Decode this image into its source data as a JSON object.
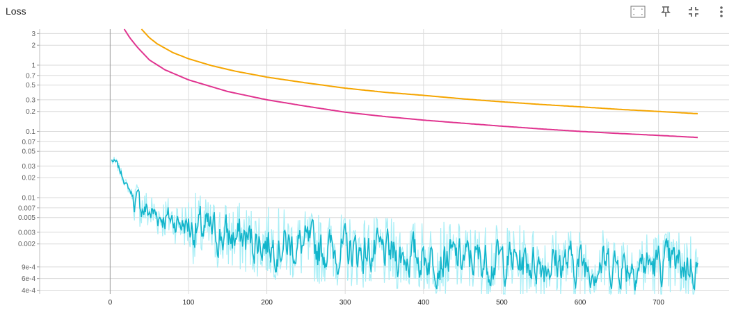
{
  "card": {
    "title": "Loss"
  },
  "toolbar": {
    "icons": [
      "fit-domain-icon",
      "pin-icon",
      "fullscreen-exit-icon",
      "more-vert-icon"
    ]
  },
  "chart_data": {
    "type": "line",
    "title": "Loss",
    "xlabel": "",
    "ylabel": "",
    "y_scale": "log",
    "grid": true,
    "xlim": [
      -90,
      790
    ],
    "ylim": [
      0.00035,
      3.5
    ],
    "x_ticks": [
      {
        "value": 0,
        "label": "0"
      },
      {
        "value": 100,
        "label": "100"
      },
      {
        "value": 200,
        "label": "200"
      },
      {
        "value": 300,
        "label": "300"
      },
      {
        "value": 400,
        "label": "400"
      },
      {
        "value": 500,
        "label": "500"
      },
      {
        "value": 600,
        "label": "600"
      },
      {
        "value": 700,
        "label": "700"
      }
    ],
    "y_ticks": [
      {
        "value": 3,
        "label": "3"
      },
      {
        "value": 2,
        "label": "2"
      },
      {
        "value": 1,
        "label": "1"
      },
      {
        "value": 0.7,
        "label": "0.7"
      },
      {
        "value": 0.5,
        "label": "0.5"
      },
      {
        "value": 0.3,
        "label": "0.3"
      },
      {
        "value": 0.2,
        "label": "0.2"
      },
      {
        "value": 0.1,
        "label": "0.1"
      },
      {
        "value": 0.07,
        "label": "0.07"
      },
      {
        "value": 0.05,
        "label": "0.05"
      },
      {
        "value": 0.03,
        "label": "0.03"
      },
      {
        "value": 0.02,
        "label": "0.02"
      },
      {
        "value": 0.01,
        "label": "0.01"
      },
      {
        "value": 0.007,
        "label": "0.007"
      },
      {
        "value": 0.005,
        "label": "0.005"
      },
      {
        "value": 0.003,
        "label": "0.003"
      },
      {
        "value": 0.002,
        "label": "0.002"
      },
      {
        "value": 0.0009,
        "label": "9e-4"
      },
      {
        "value": 0.0006,
        "label": "6e-4"
      },
      {
        "value": 0.0004,
        "label": "4e-4"
      }
    ],
    "series": [
      {
        "color": "#f5a500",
        "points": [
          [
            40,
            3.5
          ],
          [
            50,
            2.6
          ],
          [
            60,
            2.1
          ],
          [
            80,
            1.55
          ],
          [
            100,
            1.25
          ],
          [
            130,
            0.98
          ],
          [
            160,
            0.81
          ],
          [
            200,
            0.66
          ],
          [
            250,
            0.54
          ],
          [
            300,
            0.45
          ],
          [
            350,
            0.39
          ],
          [
            400,
            0.35
          ],
          [
            450,
            0.31
          ],
          [
            500,
            0.28
          ],
          [
            550,
            0.255
          ],
          [
            600,
            0.235
          ],
          [
            650,
            0.215
          ],
          [
            700,
            0.2
          ],
          [
            750,
            0.185
          ]
        ]
      },
      {
        "color": "#e0338f",
        "points": [
          [
            18,
            3.5
          ],
          [
            25,
            2.6
          ],
          [
            35,
            1.85
          ],
          [
            50,
            1.2
          ],
          [
            70,
            0.85
          ],
          [
            100,
            0.6
          ],
          [
            150,
            0.4
          ],
          [
            200,
            0.3
          ],
          [
            250,
            0.24
          ],
          [
            300,
            0.195
          ],
          [
            350,
            0.168
          ],
          [
            400,
            0.148
          ],
          [
            450,
            0.133
          ],
          [
            500,
            0.12
          ],
          [
            550,
            0.109
          ],
          [
            600,
            0.1
          ],
          [
            650,
            0.093
          ],
          [
            700,
            0.087
          ],
          [
            750,
            0.081
          ]
        ]
      },
      {
        "color": "#12b5cb",
        "smoothed_color": "#12b5cb",
        "raw_color": "#a7eef6",
        "points": [
          [
            2,
            0.036
          ],
          [
            8,
            0.033
          ],
          [
            15,
            0.022
          ],
          [
            20,
            0.016
          ],
          [
            25,
            0.013
          ],
          [
            30,
            0.01
          ],
          [
            35,
            0.0085
          ],
          [
            40,
            0.0072
          ],
          [
            50,
            0.006
          ],
          [
            60,
            0.0055
          ],
          [
            70,
            0.005
          ],
          [
            80,
            0.0046
          ],
          [
            90,
            0.0042
          ],
          [
            100,
            0.0037
          ],
          [
            120,
            0.0031
          ],
          [
            140,
            0.0027
          ],
          [
            160,
            0.0025
          ],
          [
            180,
            0.0023
          ],
          [
            200,
            0.0021
          ],
          [
            250,
            0.0018
          ],
          [
            300,
            0.0016
          ],
          [
            350,
            0.0014
          ],
          [
            400,
            0.00128
          ],
          [
            450,
            0.00118
          ],
          [
            500,
            0.00112
          ],
          [
            550,
            0.00106
          ],
          [
            600,
            0.00102
          ],
          [
            650,
            0.00099
          ],
          [
            700,
            0.00097
          ],
          [
            750,
            0.00095
          ]
        ]
      }
    ]
  }
}
